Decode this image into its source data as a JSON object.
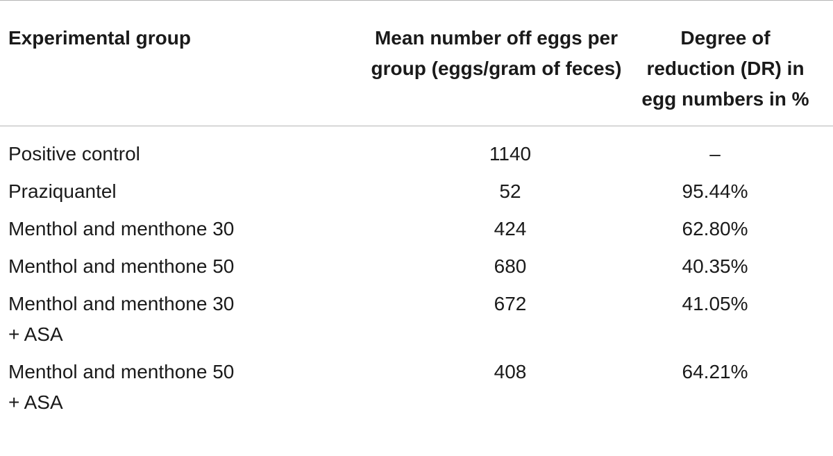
{
  "table": {
    "headers": [
      "Experimental group",
      "Mean number off eggs per group (eggs/gram of feces)",
      "Degree of reduction (DR) in egg numbers in %"
    ],
    "rows": [
      {
        "group": "Positive control",
        "mean": "1140",
        "reduction": "–"
      },
      {
        "group": "Praziquantel",
        "mean": "52",
        "reduction": "95.44%"
      },
      {
        "group": "Menthol and menthone 30",
        "mean": "424",
        "reduction": "62.80%"
      },
      {
        "group": "Menthol and menthone 50",
        "mean": "680",
        "reduction": "40.35%"
      },
      {
        "group": "Menthol and menthone 30 + ASA",
        "mean": "672",
        "reduction": "41.05%"
      },
      {
        "group": "Menthol and menthone 50 + ASA",
        "mean": "408",
        "reduction": "64.21%"
      }
    ]
  }
}
